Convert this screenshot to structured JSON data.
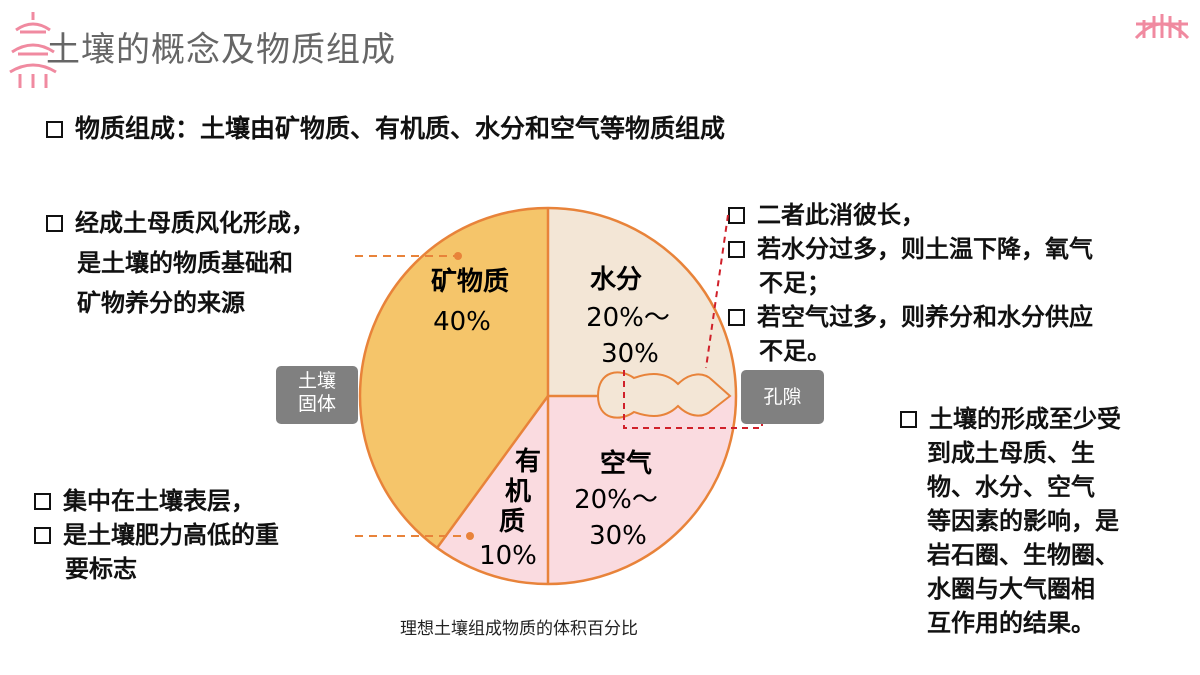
{
  "title": "土壤的概念及物质组成",
  "intro": "物质组成：土壤由矿物质、有机质、水分和空气等物质组成",
  "left_note": {
    "line1": "经成土母质风化形成，",
    "line2": "是土壤的物质基础和",
    "line3": "矿物养分的来源"
  },
  "bottom_left_note": {
    "item1": "集中在土壤表层，",
    "item2": "是土壤肥力高低的重",
    "item2_cont": "要标志"
  },
  "top_right_note": {
    "item1": "二者此消彼长，",
    "item2": "若水分过多，则土温下降，氧气",
    "item2_cont": "不足；",
    "item3": "若空气过多，则养分和水分供应",
    "item3_cont": "不足。"
  },
  "right_note": {
    "item1": "土壤的形成至少受",
    "lines": [
      "到成土母质、生",
      "物、水分、空气",
      "等因素的影响，是",
      "岩石圈、生物圈、",
      "水圈与大气圈相",
      "互作用的结果。"
    ]
  },
  "tags": {
    "solid_line1": "土壤",
    "solid_line2": "固体",
    "pore": "孔隙"
  },
  "caption": "理想土壤组成物质的体积百分比",
  "colors": {
    "mineral": "#f5c56a",
    "water": "#f3e6d6",
    "air": "#fadbe0",
    "organic": "#fadbe0",
    "outline": "#e8833a",
    "dashed_red": "#d0202a"
  },
  "chart_data": {
    "type": "pie",
    "slices": [
      {
        "label": "矿物质",
        "value_text": "40%",
        "value": 40
      },
      {
        "label": "水分",
        "value_text_1": "20%～",
        "value_text_2": "30%",
        "value": 25
      },
      {
        "label": "空气",
        "value_text_1": "20%～",
        "value_text_2": "30%",
        "value": 25
      },
      {
        "label_1": "有",
        "label_2": "机",
        "label_3": "质",
        "value_text": "10%",
        "value": 10
      }
    ]
  }
}
